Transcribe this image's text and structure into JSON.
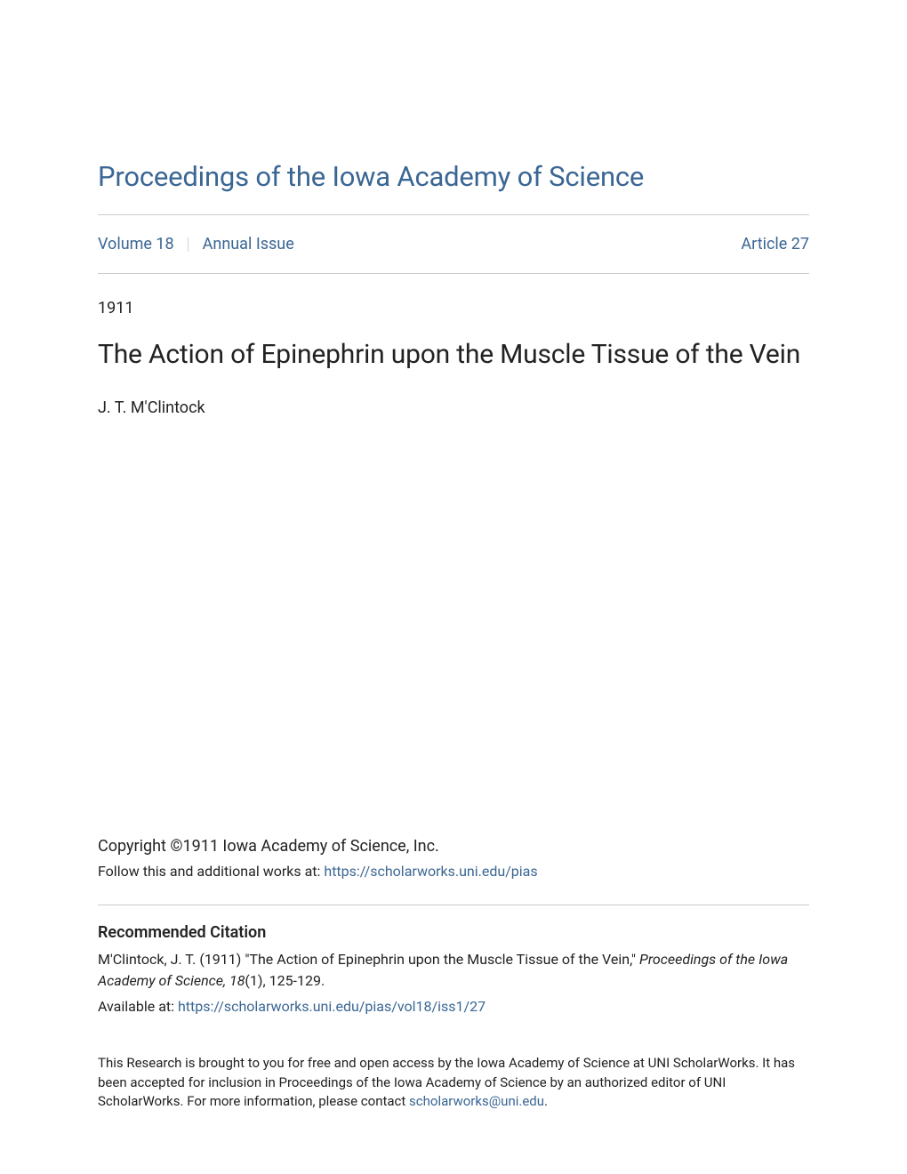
{
  "journal": {
    "title": "Proceedings of the Iowa Academy of Science",
    "volume_label": "Volume 18",
    "issue_label": "Annual Issue",
    "article_label": "Article 27"
  },
  "article": {
    "year": "1911",
    "title": "The Action of Epinephrin upon the Muscle Tissue of the Vein",
    "author": "J. T. M'Clintock"
  },
  "copyright": {
    "text": "Copyright ©1911 Iowa Academy of Science, Inc.",
    "follow_prefix": "Follow this and additional works at: ",
    "follow_url": "https://scholarworks.uni.edu/pias"
  },
  "citation": {
    "heading": "Recommended Citation",
    "line1_prefix": "M'Clintock, J. T. (1911) \"The Action of Epinephrin upon the Muscle Tissue of the Vein,\" ",
    "line1_italic": "Proceedings of the Iowa Academy of Science, 18",
    "line1_suffix": "(1), 125-129.",
    "available_prefix": "Available at: ",
    "available_url": "https://scholarworks.uni.edu/pias/vol18/iss1/27"
  },
  "footer": {
    "text_prefix": "This Research is brought to you for free and open access by the Iowa Academy of Science at UNI ScholarWorks. It has been accepted for inclusion in Proceedings of the Iowa Academy of Science by an authorized editor of UNI ScholarWorks. For more information, please contact ",
    "email": "scholarworks@uni.edu",
    "text_suffix": "."
  },
  "colors": {
    "link": "#3a6694",
    "text": "#222222",
    "divider": "#cccccc",
    "background": "#ffffff"
  }
}
